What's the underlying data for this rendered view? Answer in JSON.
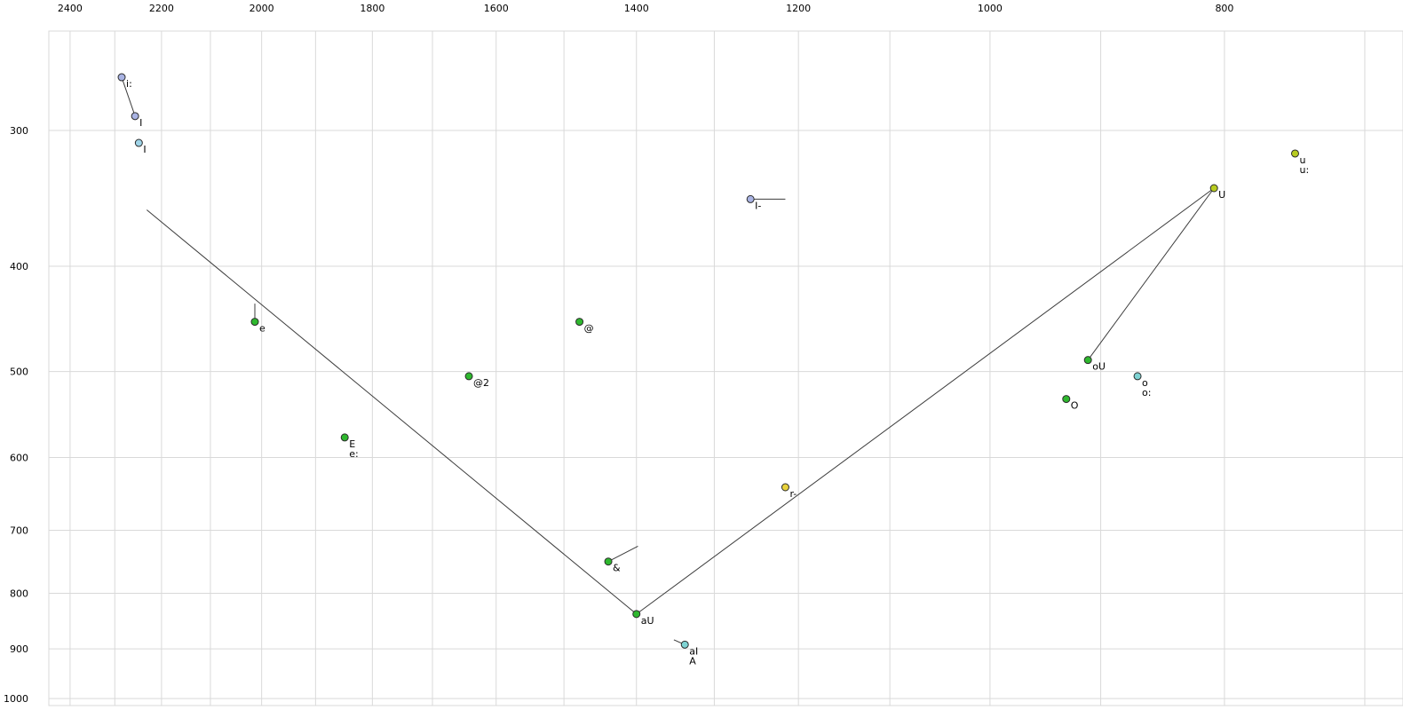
{
  "chart_data": {
    "type": "scatter",
    "title": "",
    "description": "Vowel formant chart: F2 (horizontal, reversed, log scale) vs F1 (vertical, log scale), values in Hz",
    "x_axis": {
      "label": "",
      "scale": "log",
      "reversed": true,
      "domain": [
        2449,
        675
      ],
      "tick_labels": [
        "2400",
        "2200",
        "2000",
        "1800",
        "1600",
        "1400",
        "1200",
        "1000",
        "800"
      ],
      "tick_values": [
        2400,
        2200,
        2000,
        1800,
        1600,
        1400,
        1200,
        1000,
        800
      ],
      "gridlines": [
        2400,
        2300,
        2200,
        2100,
        2000,
        1900,
        1800,
        1700,
        1600,
        1500,
        1400,
        1300,
        1200,
        1100,
        1000,
        900,
        800,
        700
      ]
    },
    "y_axis": {
      "label": "",
      "scale": "log",
      "domain": [
        243,
        1015
      ],
      "tick_labels": [
        "300",
        "400",
        "500",
        "600",
        "700",
        "800",
        "900",
        "1000"
      ],
      "tick_values": [
        300,
        400,
        500,
        600,
        700,
        800,
        900,
        1000
      ],
      "gridlines": [
        300,
        400,
        500,
        600,
        700,
        800,
        900,
        1000
      ]
    },
    "grid_color": "#d9d9d9",
    "line_color": "#3c3c3c",
    "point_stroke": "#2b2b2b",
    "point_radius": 4,
    "colors": {
      "green": "#2eb82e",
      "lavender": "#a9b3e3",
      "skyblue": "#9fd4e8",
      "cyan": "#7ed3d3",
      "yellow": "#e8d23c",
      "yellowgreen": "#b8cc20"
    },
    "points": [
      {
        "label": "i:",
        "f2": 2285,
        "f1": 268,
        "color": "lavender"
      },
      {
        "label": "I",
        "f2": 2256,
        "f1": 291,
        "color": "lavender"
      },
      {
        "label": "I",
        "f2": 2248,
        "f1": 308,
        "color": "skyblue"
      },
      {
        "label": "u",
        "sublabel": "u:",
        "f2": 748,
        "f1": 315,
        "color": "yellowgreen"
      },
      {
        "label": "U",
        "f2": 808,
        "f1": 339,
        "color": "yellowgreen"
      },
      {
        "label": "I-",
        "f2": 1256,
        "f1": 347,
        "color": "lavender"
      },
      {
        "label": "e",
        "f2": 2013,
        "f1": 450,
        "color": "green"
      },
      {
        "label": "@",
        "f2": 1478,
        "f1": 450,
        "color": "green"
      },
      {
        "label": "@2",
        "f2": 1642,
        "f1": 505,
        "color": "green"
      },
      {
        "label": "oU",
        "f2": 911,
        "f1": 488,
        "color": "green"
      },
      {
        "label": "o",
        "sublabel": "o:",
        "f2": 869,
        "f1": 505,
        "color": "cyan"
      },
      {
        "label": "O",
        "f2": 930,
        "f1": 530,
        "color": "green"
      },
      {
        "label": "E",
        "sublabel": "e:",
        "f2": 1848,
        "f1": 575,
        "color": "green"
      },
      {
        "label": "r-",
        "f2": 1215,
        "f1": 639,
        "color": "yellow"
      },
      {
        "label": "&",
        "f2": 1438,
        "f1": 748,
        "color": "green"
      },
      {
        "label": "aU",
        "f2": 1400,
        "f1": 836,
        "color": "green"
      },
      {
        "label": "aI",
        "sublabel": "A",
        "f2": 1337,
        "f1": 892,
        "color": "cyan"
      }
    ],
    "segments": [
      {
        "name": "i-to-I-tail",
        "from": [
          2285,
          268
        ],
        "to": [
          2256,
          291
        ]
      },
      {
        "name": "front-glide-line",
        "from": [
          2231,
          355
        ],
        "to": [
          1400,
          836
        ]
      },
      {
        "name": "aU-to-U-line",
        "from": [
          1400,
          836
        ],
        "to": [
          808,
          339
        ]
      },
      {
        "name": "U-to-oU-line",
        "from": [
          808,
          339
        ],
        "to": [
          911,
          488
        ]
      },
      {
        "name": "e-tail",
        "from": [
          2013,
          433
        ],
        "to": [
          2013,
          450
        ]
      },
      {
        "name": "I--tail",
        "from": [
          1256,
          347
        ],
        "to": [
          1215,
          347
        ]
      },
      {
        "name": "amp-tail",
        "from": [
          1438,
          748
        ],
        "to": [
          1398,
          724
        ]
      },
      {
        "name": "aI-tail",
        "from": [
          1351,
          883
        ],
        "to": [
          1337,
          892
        ]
      }
    ]
  }
}
